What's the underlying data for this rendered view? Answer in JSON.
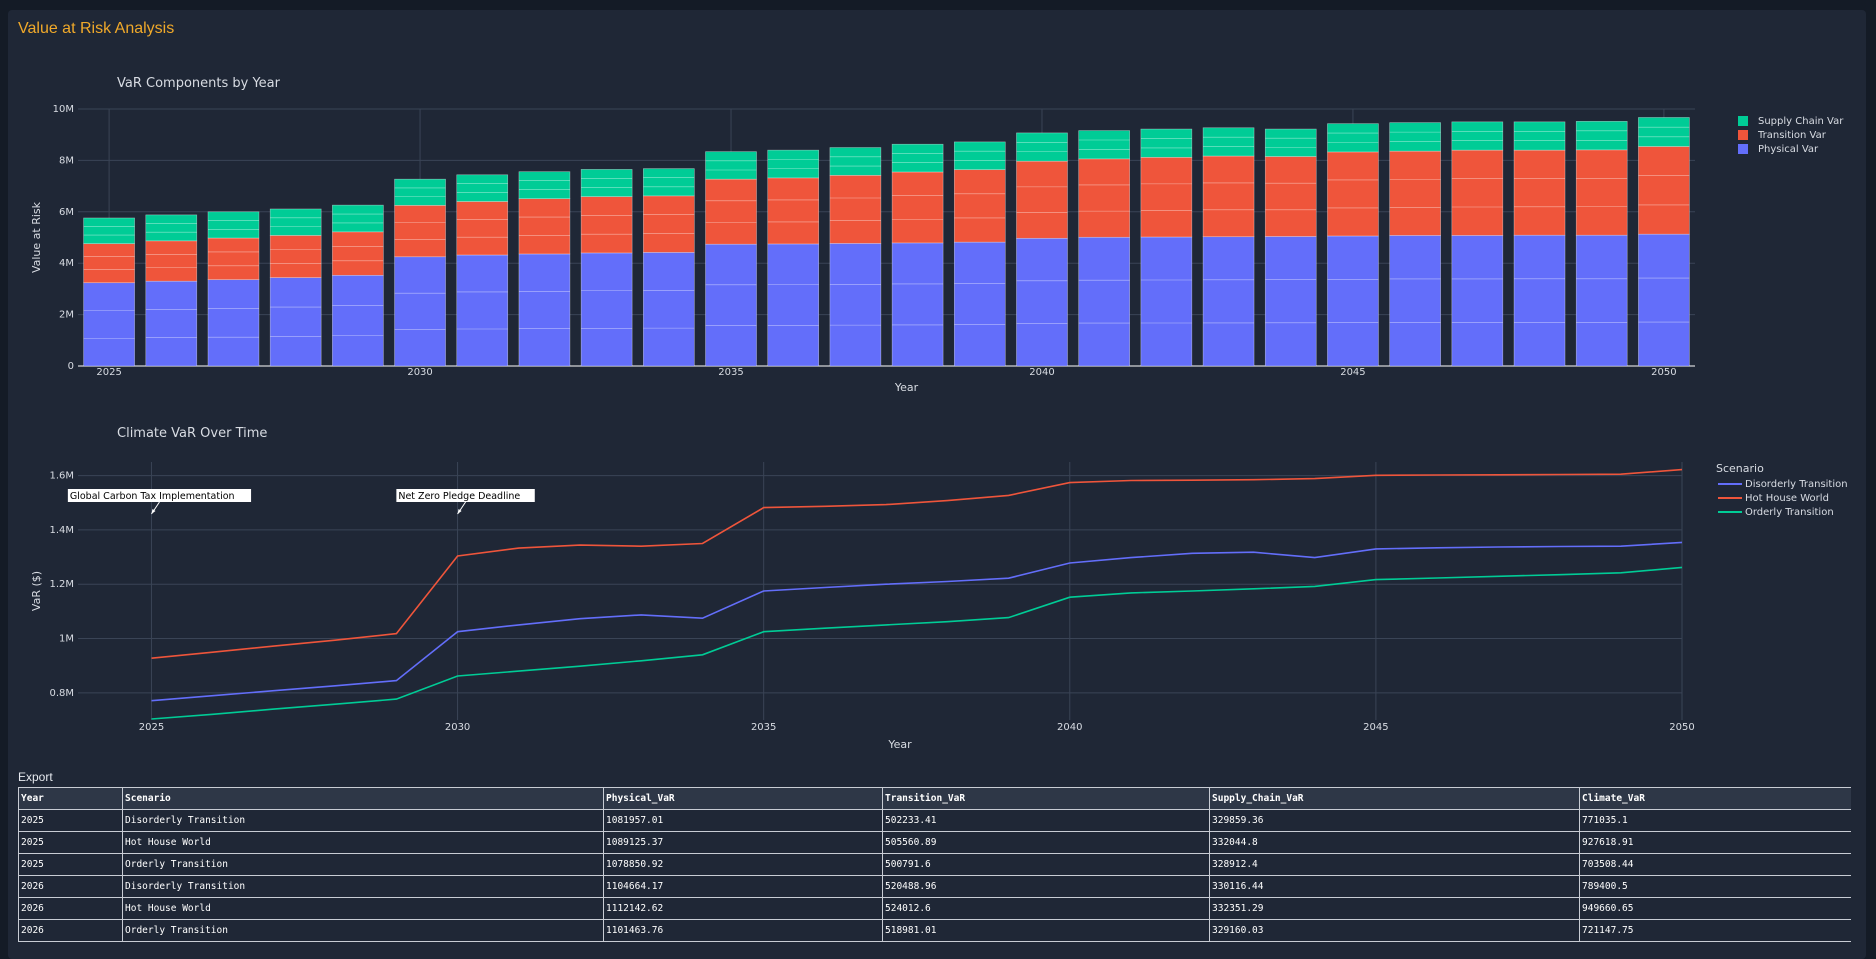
{
  "app": {
    "title": "Value at Risk Analysis"
  },
  "colors": {
    "physical": "#636efa",
    "transition": "#ef553b",
    "supply": "#00cc96",
    "grid": "#3a4456",
    "text": "#d8dce3",
    "annotation_bg": "#ffffff"
  },
  "chart_data": [
    {
      "type": "bar",
      "stacked": true,
      "title": "VaR Components by Year",
      "xlabel": "Year",
      "ylabel": "Value at Risk",
      "ylim": [
        0,
        10000000
      ],
      "yticks": [
        0,
        2000000,
        4000000,
        6000000,
        8000000,
        10000000
      ],
      "ytick_labels": [
        "0",
        "2M",
        "4M",
        "6M",
        "8M",
        "10M"
      ],
      "xticks": [
        2025,
        2030,
        2035,
        2040,
        2045,
        2050
      ],
      "grid": true,
      "legend_position": "top-right",
      "categories": [
        2025,
        2026,
        2027,
        2028,
        2029,
        2030,
        2031,
        2032,
        2033,
        2034,
        2035,
        2036,
        2037,
        2038,
        2039,
        2040,
        2041,
        2042,
        2043,
        2044,
        2045,
        2046,
        2047,
        2048,
        2049,
        2050
      ],
      "series": [
        {
          "name": "Physical Var",
          "color": "#636efa",
          "values": [
            3240000,
            3300000,
            3360000,
            3440000,
            3530000,
            4250000,
            4320000,
            4360000,
            4400000,
            4420000,
            4740000,
            4750000,
            4770000,
            4790000,
            4820000,
            4970000,
            5010000,
            5020000,
            5030000,
            5040000,
            5060000,
            5080000,
            5080000,
            5090000,
            5090000,
            5130000
          ]
        },
        {
          "name": "Transition Var",
          "color": "#ef553b",
          "values": [
            1520000,
            1570000,
            1620000,
            1640000,
            1690000,
            2000000,
            2080000,
            2150000,
            2190000,
            2200000,
            2530000,
            2570000,
            2650000,
            2760000,
            2820000,
            3000000,
            3050000,
            3100000,
            3140000,
            3110000,
            3270000,
            3280000,
            3320000,
            3310000,
            3320000,
            3410000
          ]
        },
        {
          "name": "Supply Chain Var",
          "color": "#00cc96",
          "values": [
            1000000,
            1010000,
            1020000,
            1030000,
            1040000,
            1020000,
            1040000,
            1050000,
            1060000,
            1060000,
            1070000,
            1080000,
            1080000,
            1080000,
            1080000,
            1100000,
            1100000,
            1100000,
            1100000,
            1070000,
            1100000,
            1110000,
            1100000,
            1100000,
            1110000,
            1130000
          ]
        }
      ]
    },
    {
      "type": "line",
      "title": "Climate VaR Over Time",
      "xlabel": "Year",
      "ylabel": "VaR ($)",
      "ylim": [
        700000,
        1650000
      ],
      "yticks": [
        800000,
        1000000,
        1200000,
        1400000,
        1600000
      ],
      "ytick_labels": [
        "0.8M",
        "1M",
        "1.2M",
        "1.4M",
        "1.6M"
      ],
      "xticks": [
        2025,
        2030,
        2035,
        2040,
        2045,
        2050
      ],
      "grid": true,
      "legend_title": "Scenario",
      "legend_position": "top-right",
      "x": [
        2025,
        2026,
        2027,
        2028,
        2029,
        2030,
        2031,
        2032,
        2033,
        2034,
        2035,
        2036,
        2037,
        2038,
        2039,
        2040,
        2041,
        2042,
        2043,
        2044,
        2045,
        2046,
        2047,
        2048,
        2049,
        2050
      ],
      "series": [
        {
          "name": "Disorderly Transition",
          "color": "#636efa",
          "values": [
            771035.1,
            789400.5,
            808000,
            826000,
            845000,
            1025000,
            1050000,
            1073000,
            1087000,
            1075000,
            1175000,
            1188000,
            1200000,
            1210000,
            1222000,
            1278000,
            1298000,
            1314000,
            1318000,
            1298000,
            1330000,
            1334000,
            1337000,
            1339000,
            1340000,
            1354000
          ]
        },
        {
          "name": "Hot House World",
          "color": "#ef553b",
          "values": [
            927618.91,
            949660.65,
            972000,
            994000,
            1018000,
            1304000,
            1333000,
            1344000,
            1340000,
            1350000,
            1482000,
            1487000,
            1493000,
            1508000,
            1527000,
            1574000,
            1582000,
            1583000,
            1585000,
            1589000,
            1601000,
            1602000,
            1603000,
            1604000,
            1605000,
            1622000
          ]
        },
        {
          "name": "Orderly Transition",
          "color": "#00cc96",
          "values": [
            703508.44,
            721147.75,
            740000,
            758000,
            777000,
            862000,
            880000,
            898000,
            918000,
            940000,
            1025000,
            1038000,
            1050000,
            1062000,
            1077000,
            1152000,
            1168000,
            1175000,
            1183000,
            1192000,
            1217000,
            1223000,
            1229000,
            1235000,
            1242000,
            1262000
          ]
        }
      ],
      "annotations": [
        {
          "text": "Global Carbon Tax Implementation",
          "x": 2025
        },
        {
          "text": "Net Zero Pledge Deadline",
          "x": 2030
        }
      ]
    }
  ],
  "export": {
    "label": "Export",
    "columns": [
      "Year",
      "Scenario",
      "Physical_VaR",
      "Transition_VaR",
      "Supply_Chain_VaR",
      "Climate_VaR"
    ],
    "rows": [
      [
        "2025",
        "Disorderly Transition",
        "1081957.01",
        "502233.41",
        "329859.36",
        "771035.1"
      ],
      [
        "2025",
        "Hot House World",
        "1089125.37",
        "505560.89",
        "332044.8",
        "927618.91"
      ],
      [
        "2025",
        "Orderly Transition",
        "1078850.92",
        "500791.6",
        "328912.4",
        "703508.44"
      ],
      [
        "2026",
        "Disorderly Transition",
        "1104664.17",
        "520488.96",
        "330116.44",
        "789400.5"
      ],
      [
        "2026",
        "Hot House World",
        "1112142.62",
        "524012.6",
        "332351.29",
        "949660.65"
      ],
      [
        "2026",
        "Orderly Transition",
        "1101463.76",
        "518981.01",
        "329160.03",
        "721147.75"
      ]
    ]
  }
}
